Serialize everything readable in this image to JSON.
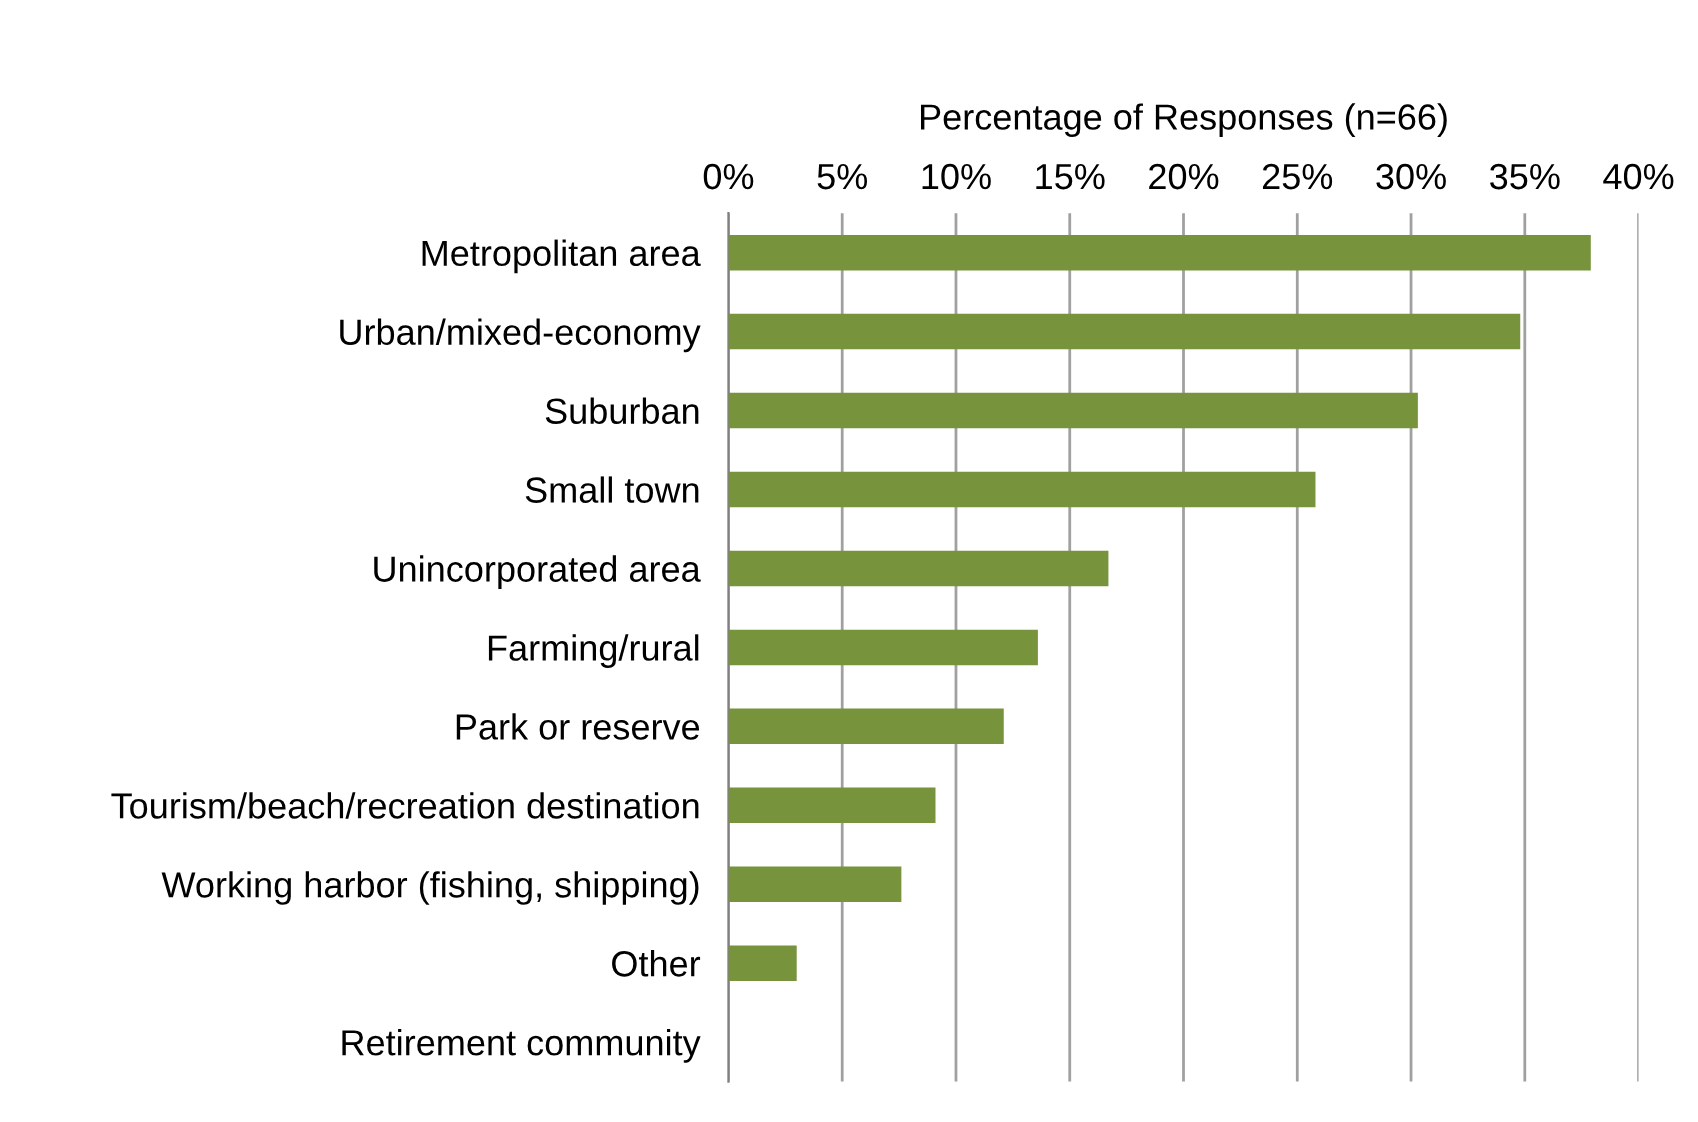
{
  "chart_data": {
    "type": "bar",
    "orientation": "horizontal",
    "xlabel": "Percentage of Responses (n=66)",
    "categories": [
      "Metropolitan area",
      "Urban/mixed-economy",
      "Suburban",
      "Small town",
      "Unincorporated area",
      "Farming/rural",
      "Park or reserve",
      "Tourism/beach/recreation destination",
      "Working harbor (fishing, shipping)",
      "Other",
      "Retirement community"
    ],
    "values": [
      37.9,
      34.8,
      30.3,
      25.8,
      16.7,
      13.6,
      12.1,
      9.1,
      7.6,
      3.0,
      0
    ],
    "color": "#77933c",
    "xlim": [
      0,
      40
    ],
    "xticks": [
      {
        "value": 0,
        "label": "0%"
      },
      {
        "value": 5,
        "label": "5%"
      },
      {
        "value": 10,
        "label": "10%"
      },
      {
        "value": 15,
        "label": "15%"
      },
      {
        "value": 20,
        "label": "20%"
      },
      {
        "value": 25,
        "label": "25%"
      },
      {
        "value": 30,
        "label": "30%"
      },
      {
        "value": 35,
        "label": "35%"
      },
      {
        "value": 40,
        "label": "40%"
      }
    ],
    "grid": "x",
    "legend": false
  }
}
